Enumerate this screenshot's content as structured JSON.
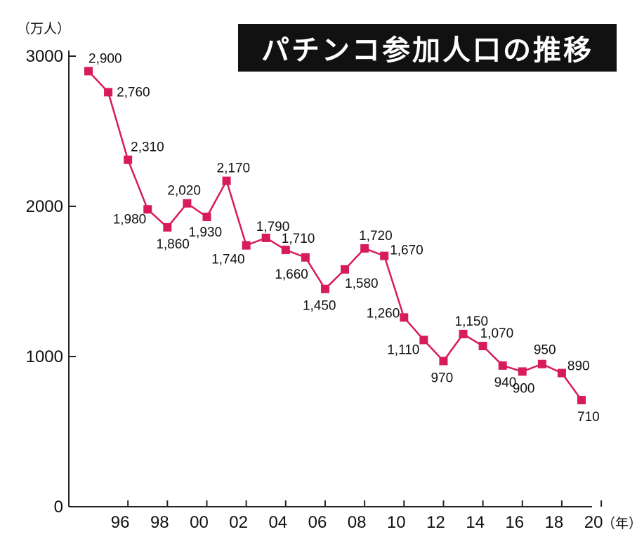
{
  "chart_data": {
    "type": "line",
    "title": "パチンコ参加人口の推移",
    "y_unit": "（万人）",
    "x_unit": "（年）",
    "ylim": [
      0,
      3000
    ],
    "y_ticks": [
      "0",
      "1000",
      "2000",
      "3000"
    ],
    "x_ticks": [
      "96",
      "98",
      "00",
      "02",
      "04",
      "06",
      "08",
      "10",
      "12",
      "14",
      "16",
      "18",
      "20"
    ],
    "x_tick_years": [
      1996,
      1998,
      2000,
      2002,
      2004,
      2006,
      2008,
      2010,
      2012,
      2014,
      2016,
      2018,
      2020
    ],
    "grid": false,
    "legend": "none",
    "marker": "square",
    "line_color": "#d81b5b",
    "series": [
      {
        "x": [
          1994,
          1995,
          1996,
          1997,
          1998,
          1999,
          2000,
          2001,
          2002,
          2003,
          2004,
          2005,
          2006,
          2007,
          2008,
          2009,
          2010,
          2011,
          2012,
          2013,
          2014,
          2015,
          2016,
          2017,
          2018,
          2019
        ],
        "values": [
          2900,
          2760,
          2310,
          1980,
          1860,
          2020,
          1930,
          2170,
          1740,
          1790,
          1710,
          1660,
          1450,
          1580,
          1720,
          1670,
          1260,
          1110,
          970,
          1150,
          1070,
          940,
          900,
          950,
          890,
          710
        ],
        "labels": [
          "2,900",
          "2,760",
          "2,310",
          "1,980",
          "1,860",
          "2,020",
          "1,930",
          "2,170",
          "1,740",
          "1,790",
          "1,710",
          "1,660",
          "1,450",
          "1,580",
          "1,720",
          "1,670",
          "1,260",
          "1,110",
          "970",
          "1,150",
          "1,070",
          "940",
          "900",
          "950",
          "890",
          "710"
        ]
      }
    ]
  }
}
